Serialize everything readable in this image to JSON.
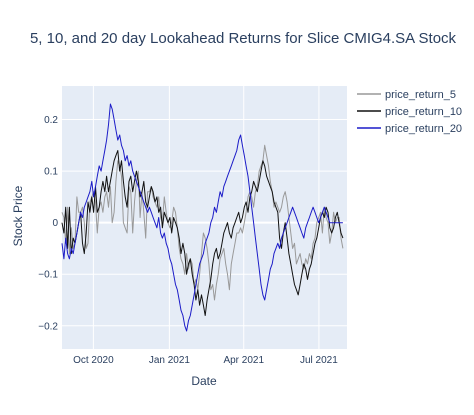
{
  "chart_data": {
    "type": "line",
    "title": "5, 10, and 20 day Lookahead Returns for Slice CMIG4.SA Stock",
    "xlabel": "Date",
    "ylabel": "Stock Price",
    "x_start": "2020-08-24",
    "x_end": "2021-07-30",
    "xlim": [
      "2020-08-24",
      "2021-08-04"
    ],
    "ylim": [
      -0.245,
      0.265
    ],
    "x_ticks": [
      {
        "date": "2020-10-01",
        "label": "Oct 2020"
      },
      {
        "date": "2021-01-01",
        "label": "Jan 2021"
      },
      {
        "date": "2021-04-01",
        "label": "Apr 2021"
      },
      {
        "date": "2021-07-01",
        "label": "Jul 2021"
      }
    ],
    "y_ticks": [
      {
        "value": -0.2,
        "label": "−0.2"
      },
      {
        "value": -0.1,
        "label": "−0.1"
      },
      {
        "value": 0,
        "label": "0"
      },
      {
        "value": 0.1,
        "label": "0.1"
      },
      {
        "value": 0.2,
        "label": "0.2"
      }
    ],
    "grid": true,
    "legend_position": "top-right",
    "series": [
      {
        "name": "price_return_5",
        "color": "#999999",
        "values": [
          0.02,
          0.01,
          -0.04,
          0.03,
          -0.06,
          -0.01,
          -0.05,
          -0.04,
          0.05,
          0.02,
          0.02,
          0.03,
          0.0,
          -0.05,
          -0.04,
          0.04,
          0.05,
          0.06,
          0.04,
          -0.02,
          0.03,
          0.04,
          0.02,
          0.05,
          0.06,
          0.03,
          0.07,
          0.0,
          0.02,
          0.08,
          0.12,
          0.11,
          0.09,
          0.0,
          -0.01,
          -0.02,
          0.07,
          0.06,
          -0.02,
          0.04,
          0.08,
          0.1,
          0.01,
          0.06,
          0.02,
          -0.03,
          0.06,
          0.06,
          0.07,
          0.05,
          0.04,
          0.03,
          0.05,
          0.01,
          0.0,
          0.05,
          0.02,
          0.0,
          -0.01,
          0.0,
          0.03,
          0.02,
          -0.01,
          -0.05,
          -0.07,
          -0.08,
          -0.1,
          -0.06,
          -0.09,
          -0.07,
          -0.08,
          -0.12,
          -0.11,
          -0.13,
          -0.1,
          -0.06,
          -0.02,
          -0.03,
          -0.05,
          -0.08,
          -0.13,
          -0.12,
          -0.15,
          -0.12,
          -0.1,
          -0.07,
          -0.06,
          -0.05,
          -0.08,
          -0.1,
          -0.13,
          -0.08,
          -0.06,
          -0.04,
          -0.02,
          -0.02,
          -0.01,
          -0.02,
          0.0,
          0.02,
          0.05,
          0.06,
          0.05,
          0.03,
          0.06,
          0.07,
          0.1,
          0.11,
          0.12,
          0.15,
          0.13,
          0.11,
          0.08,
          0.06,
          0.03,
          0.04,
          0.03,
          0.02,
          0.03,
          0.05,
          0.06,
          0.04,
          0.01,
          -0.02,
          -0.05,
          -0.04,
          -0.08,
          -0.07,
          -0.06,
          -0.08,
          -0.09,
          -0.07,
          -0.08,
          -0.06,
          -0.07,
          -0.04,
          -0.03,
          0.0,
          0.01,
          0.02,
          -0.02,
          0.03,
          0.01,
          0.0,
          -0.04,
          -0.02,
          0.02,
          0.0,
          0.01,
          0.01,
          -0.03,
          -0.05
        ]
      },
      {
        "name": "price_return_10",
        "color": "#111111",
        "values": [
          0.0,
          -0.02,
          0.03,
          -0.05,
          0.03,
          -0.06,
          -0.03,
          -0.04,
          -0.02,
          0.0,
          0.02,
          -0.04,
          -0.06,
          -0.02,
          0.04,
          0.02,
          0.05,
          0.02,
          0.07,
          0.02,
          0.03,
          0.06,
          0.08,
          0.06,
          0.09,
          0.06,
          0.08,
          0.1,
          0.12,
          0.13,
          0.14,
          0.1,
          0.12,
          0.08,
          0.05,
          0.03,
          0.08,
          0.09,
          0.06,
          0.08,
          0.1,
          0.08,
          0.05,
          0.06,
          0.08,
          0.04,
          0.03,
          0.05,
          0.07,
          0.06,
          0.04,
          0.05,
          0.02,
          0.03,
          -0.01,
          0.02,
          0.01,
          0.0,
          0.01,
          -0.02,
          0.01,
          0.0,
          -0.01,
          -0.03,
          -0.06,
          -0.04,
          -0.06,
          -0.1,
          -0.08,
          -0.07,
          -0.1,
          -0.12,
          -0.15,
          -0.13,
          -0.16,
          -0.14,
          -0.16,
          -0.18,
          -0.15,
          -0.13,
          -0.11,
          -0.08,
          -0.06,
          -0.05,
          -0.07,
          -0.06,
          -0.04,
          -0.02,
          -0.01,
          0.0,
          -0.02,
          -0.03,
          -0.01,
          0.0,
          0.01,
          0.02,
          0.0,
          0.01,
          0.03,
          0.04,
          0.02,
          0.05,
          0.06,
          0.08,
          0.07,
          0.06,
          0.08,
          0.1,
          0.12,
          0.11,
          0.09,
          0.08,
          0.07,
          0.06,
          0.04,
          0.03,
          0.02,
          -0.03,
          -0.05,
          -0.02,
          0.0,
          -0.03,
          -0.06,
          -0.08,
          -0.1,
          -0.12,
          -0.13,
          -0.14,
          -0.12,
          -0.1,
          -0.08,
          -0.09,
          -0.11,
          -0.09,
          -0.08,
          -0.06,
          -0.04,
          -0.03,
          -0.01,
          0.01,
          0.02,
          0.01,
          0.03,
          0.02,
          -0.01,
          -0.02,
          -0.01,
          0.01,
          0.02,
          0.0,
          -0.02,
          -0.03
        ]
      },
      {
        "name": "price_return_20",
        "color": "#1c1cc8",
        "values": [
          -0.04,
          -0.07,
          -0.03,
          -0.06,
          -0.07,
          -0.05,
          -0.06,
          -0.04,
          -0.02,
          0.0,
          0.02,
          0.01,
          0.03,
          0.04,
          0.05,
          0.06,
          0.08,
          0.05,
          0.07,
          0.09,
          0.11,
          0.1,
          0.12,
          0.14,
          0.16,
          0.19,
          0.23,
          0.22,
          0.2,
          0.18,
          0.16,
          0.17,
          0.15,
          0.14,
          0.12,
          0.13,
          0.11,
          0.12,
          0.1,
          0.09,
          0.08,
          0.07,
          0.06,
          0.05,
          0.04,
          0.03,
          0.02,
          0.03,
          0.02,
          0.01,
          0.0,
          -0.01,
          0.01,
          -0.02,
          -0.03,
          -0.02,
          -0.04,
          -0.05,
          -0.07,
          -0.08,
          -0.1,
          -0.12,
          -0.13,
          -0.15,
          -0.17,
          -0.18,
          -0.2,
          -0.21,
          -0.19,
          -0.18,
          -0.16,
          -0.14,
          -0.12,
          -0.1,
          -0.08,
          -0.07,
          -0.06,
          -0.04,
          -0.03,
          -0.02,
          0.0,
          0.01,
          0.03,
          0.02,
          0.04,
          0.06,
          0.05,
          0.07,
          0.08,
          0.09,
          0.1,
          0.11,
          0.12,
          0.13,
          0.14,
          0.16,
          0.17,
          0.15,
          0.13,
          0.11,
          0.09,
          0.06,
          0.03,
          0.0,
          -0.03,
          -0.06,
          -0.09,
          -0.12,
          -0.14,
          -0.15,
          -0.13,
          -0.11,
          -0.09,
          -0.08,
          -0.06,
          -0.05,
          -0.04,
          -0.05,
          -0.03,
          -0.02,
          -0.01,
          0.0,
          0.01,
          0.02,
          0.03,
          0.02,
          0.01,
          0.0,
          -0.01,
          -0.02,
          -0.03,
          -0.01,
          0.0,
          0.01,
          0.02,
          0.03,
          0.02,
          0.01,
          0.0,
          0.01,
          0.02,
          0.03,
          0.02,
          0.01,
          0.0,
          0.0,
          0.0,
          0.0,
          0.0,
          0.0,
          0.0,
          0.0
        ]
      }
    ]
  }
}
